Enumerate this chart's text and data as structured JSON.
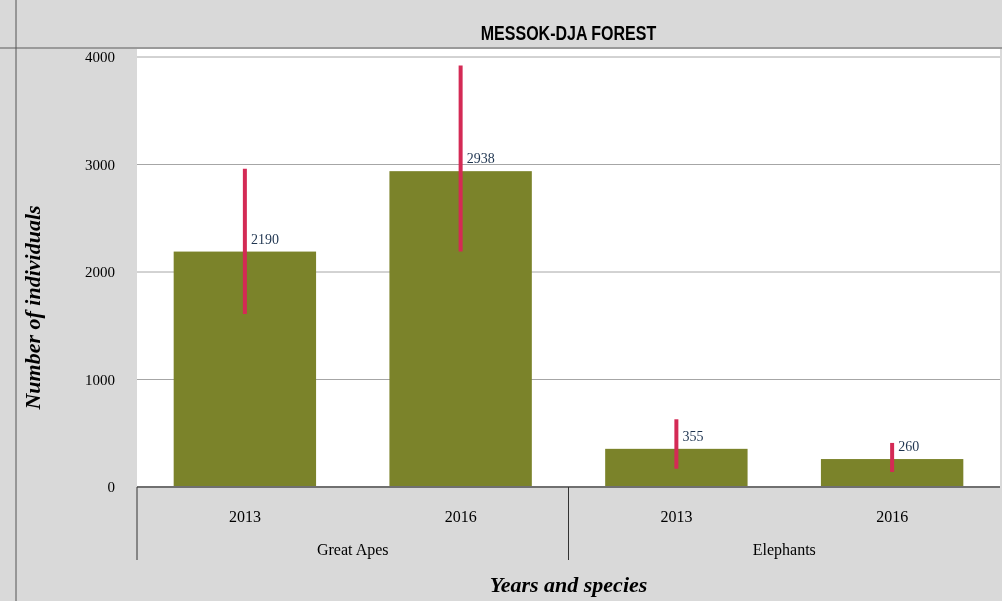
{
  "chart_data": {
    "type": "bar",
    "title": "MESSOK-DJA FOREST",
    "xlabel": "Years and species",
    "ylabel": "Number of individuals",
    "categories": [
      "2013",
      "2016",
      "2013",
      "2016"
    ],
    "series": [
      {
        "color": "#7b832a",
        "values": [
          2190,
          2938,
          355,
          260
        ],
        "errors": [
          [
            1610,
            2960
          ],
          [
            2190,
            3920
          ],
          [
            170,
            630
          ],
          [
            140,
            410
          ]
        ]
      }
    ],
    "annotations": [
      "Great Apes",
      "Elephants"
    ],
    "ylim": [
      0,
      4000
    ],
    "yticks": [
      0,
      1000,
      2000,
      3000,
      4000
    ],
    "grid": "y",
    "data_labels": true
  }
}
